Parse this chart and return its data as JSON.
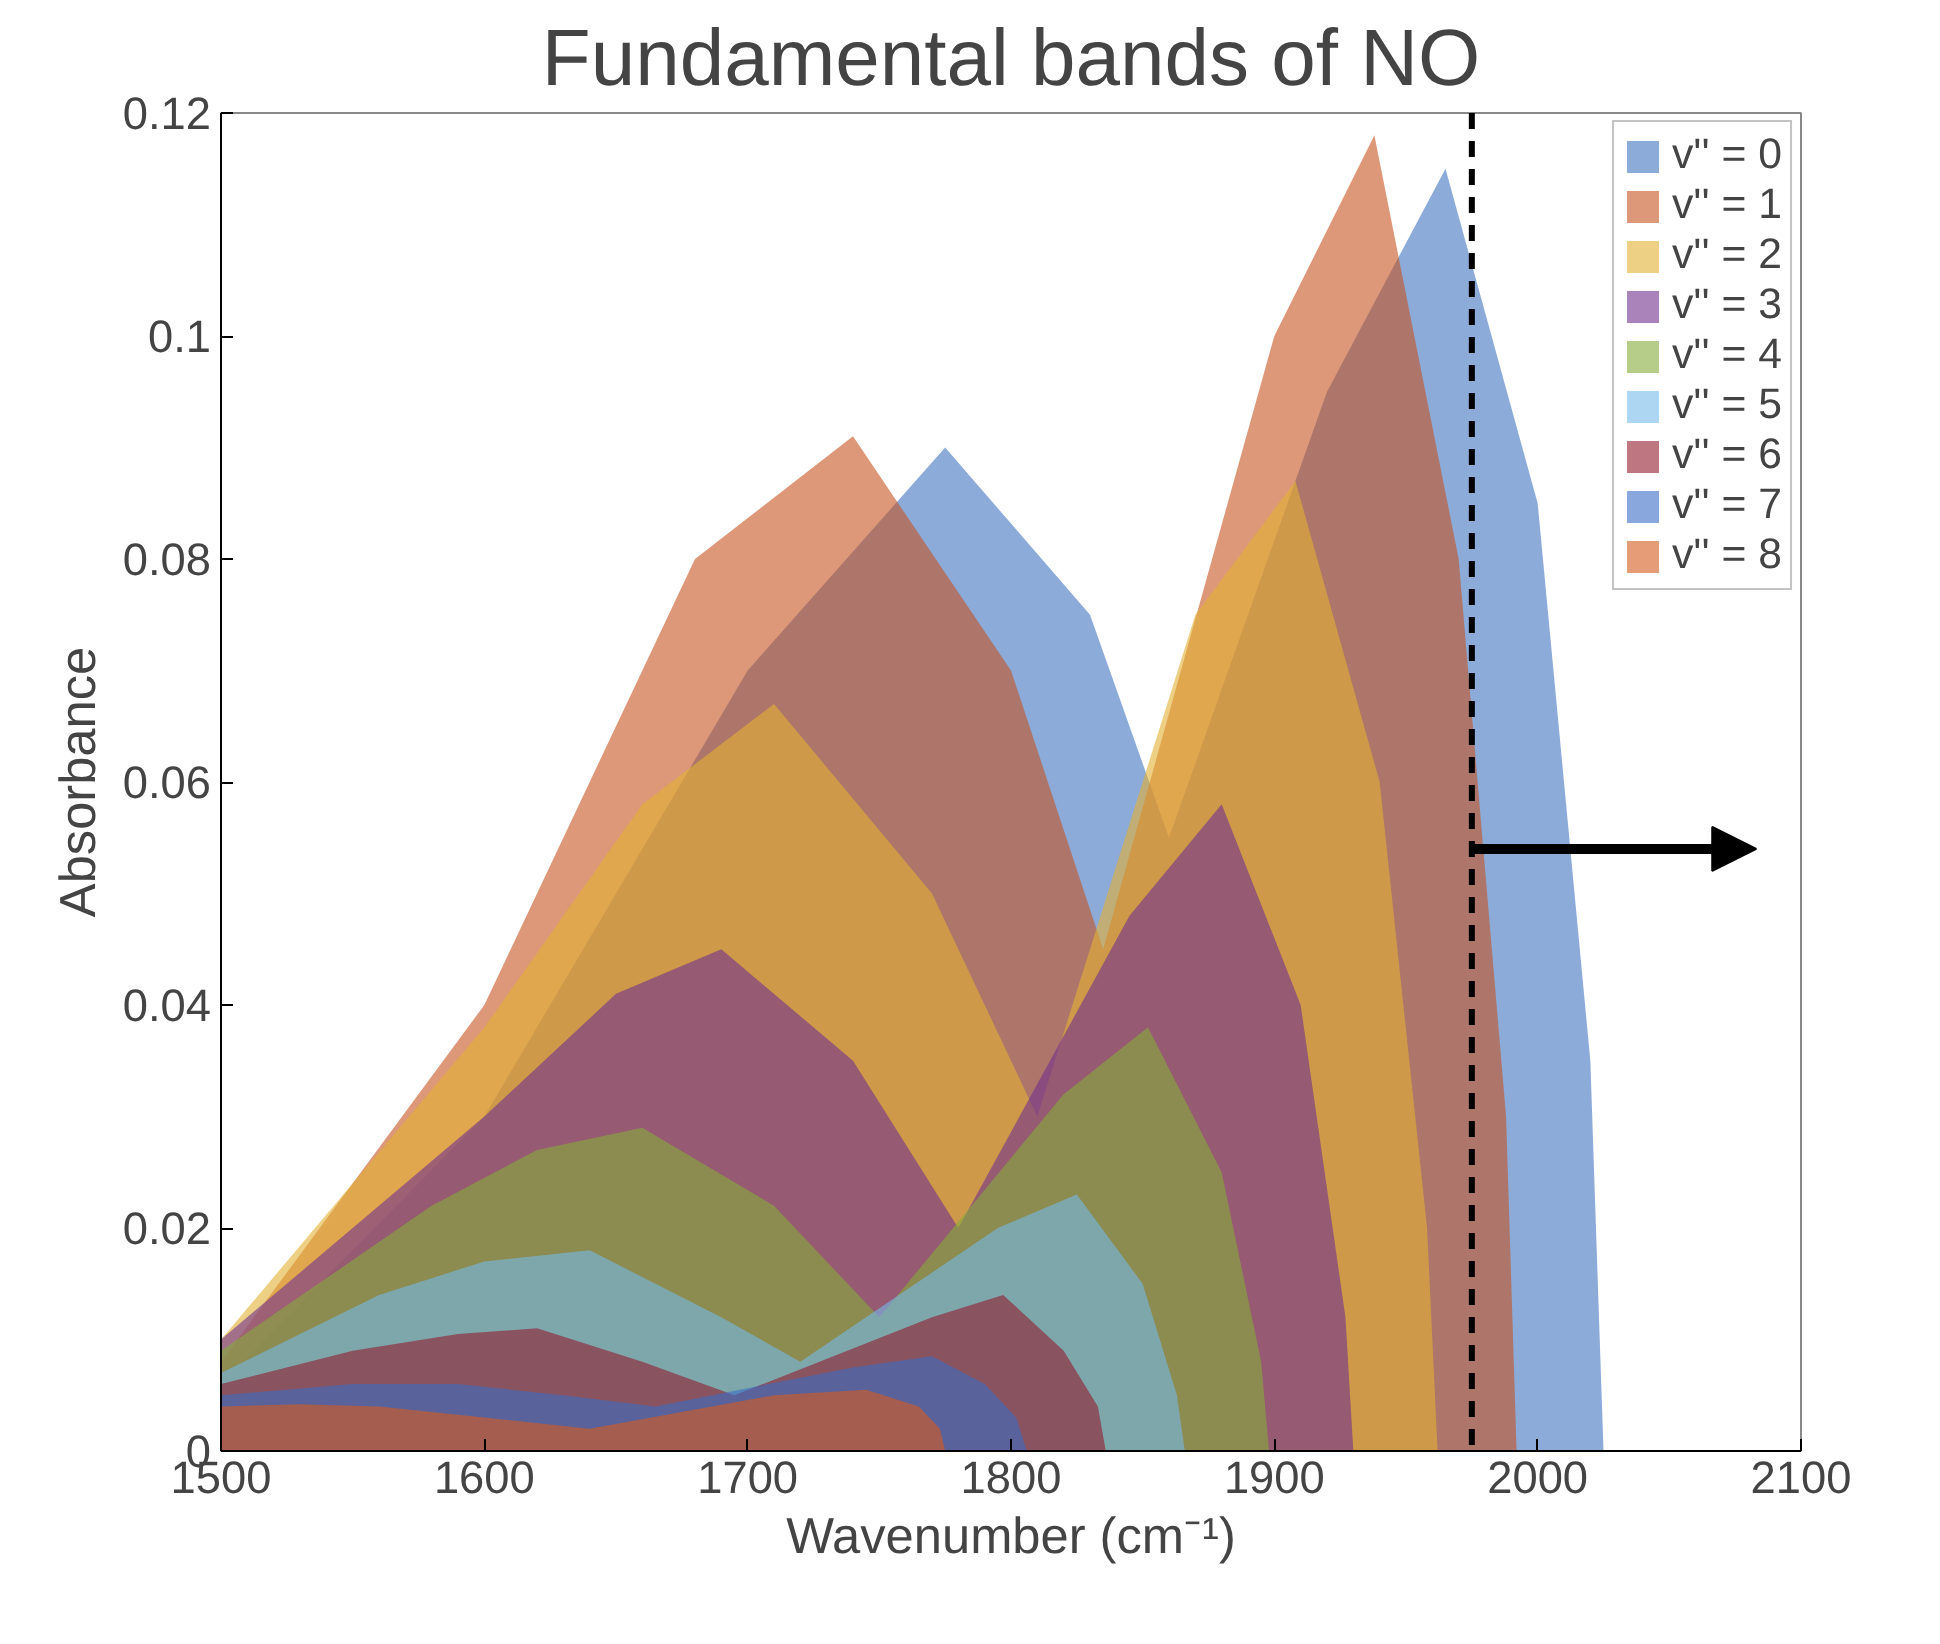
{
  "chart_data": {
    "type": "area",
    "title": "Fundamental bands of NO",
    "xlabel": "Wavenumber (cm⁻¹)",
    "ylabel": "Absorbance",
    "xlim": [
      1500,
      2100
    ],
    "ylim": [
      0,
      0.12
    ],
    "xticks": [
      1500,
      1600,
      1700,
      1800,
      1900,
      2000,
      2100
    ],
    "yticks": [
      0,
      0.02,
      0.04,
      0.06,
      0.08,
      0.1,
      0.12
    ],
    "grid": false,
    "legend": "top right",
    "ref_lines": [
      {
        "axis": "x",
        "value": 1975,
        "color": "#000000",
        "line_style": "dashed"
      }
    ],
    "series": [
      {
        "name": "v'' = 0",
        "color": "#3f73bf",
        "x": [
          1500,
          1600,
          1700,
          1775,
          1830,
          1860,
          1920,
          1965,
          2000,
          2020,
          2025
        ],
        "values": [
          0.006,
          0.03,
          0.07,
          0.09,
          0.075,
          0.055,
          0.095,
          0.115,
          0.085,
          0.035,
          0
        ]
      },
      {
        "name": "v'' = 1",
        "color": "#c4541f",
        "x": [
          1500,
          1600,
          1680,
          1740,
          1800,
          1835,
          1900,
          1938,
          1970,
          1988,
          1992
        ],
        "values": [
          0.008,
          0.04,
          0.08,
          0.091,
          0.07,
          0.045,
          0.1,
          0.118,
          0.08,
          0.03,
          0
        ]
      },
      {
        "name": "v'' = 2",
        "color": "#e2b033",
        "x": [
          1500,
          1600,
          1660,
          1710,
          1770,
          1810,
          1870,
          1908,
          1940,
          1958,
          1962
        ],
        "values": [
          0.01,
          0.038,
          0.058,
          0.067,
          0.05,
          0.03,
          0.075,
          0.087,
          0.06,
          0.02,
          0
        ]
      },
      {
        "name": "v'' = 3",
        "color": "#72318e",
        "x": [
          1500,
          1600,
          1650,
          1690,
          1740,
          1780,
          1845,
          1880,
          1910,
          1927,
          1930
        ],
        "values": [
          0.01,
          0.03,
          0.041,
          0.045,
          0.035,
          0.02,
          0.048,
          0.058,
          0.04,
          0.012,
          0
        ]
      },
      {
        "name": "v'' = 4",
        "color": "#85ac3b",
        "x": [
          1500,
          1580,
          1620,
          1660,
          1710,
          1750,
          1820,
          1852,
          1880,
          1895,
          1898
        ],
        "values": [
          0.009,
          0.022,
          0.027,
          0.029,
          0.022,
          0.012,
          0.032,
          0.038,
          0.025,
          0.008,
          0
        ]
      },
      {
        "name": "v'' = 5",
        "color": "#74bbea",
        "x": [
          1500,
          1560,
          1600,
          1640,
          1690,
          1720,
          1795,
          1825,
          1850,
          1863,
          1866
        ],
        "values": [
          0.007,
          0.014,
          0.017,
          0.018,
          0.012,
          0.008,
          0.02,
          0.023,
          0.015,
          0.005,
          0
        ]
      },
      {
        "name": "v'' = 6",
        "color": "#931a2d",
        "x": [
          1500,
          1550,
          1590,
          1620,
          1660,
          1695,
          1770,
          1797,
          1820,
          1833,
          1836
        ],
        "values": [
          0.006,
          0.009,
          0.0105,
          0.011,
          0.008,
          0.005,
          0.012,
          0.014,
          0.009,
          0.004,
          0
        ]
      },
      {
        "name": "v'' = 7",
        "color": "#3a6cc4",
        "x": [
          1500,
          1550,
          1590,
          1630,
          1665,
          1740,
          1770,
          1790,
          1802,
          1806
        ],
        "values": [
          0.005,
          0.006,
          0.006,
          0.005,
          0.004,
          0.0075,
          0.0085,
          0.006,
          0.003,
          0
        ]
      },
      {
        "name": "v'' = 8",
        "color": "#d65a1a",
        "x": [
          1500,
          1530,
          1560,
          1600,
          1640,
          1710,
          1745,
          1765,
          1773,
          1775
        ],
        "values": [
          0.004,
          0.0042,
          0.004,
          0.003,
          0.002,
          0.005,
          0.0055,
          0.004,
          0.002,
          0
        ]
      }
    ]
  }
}
